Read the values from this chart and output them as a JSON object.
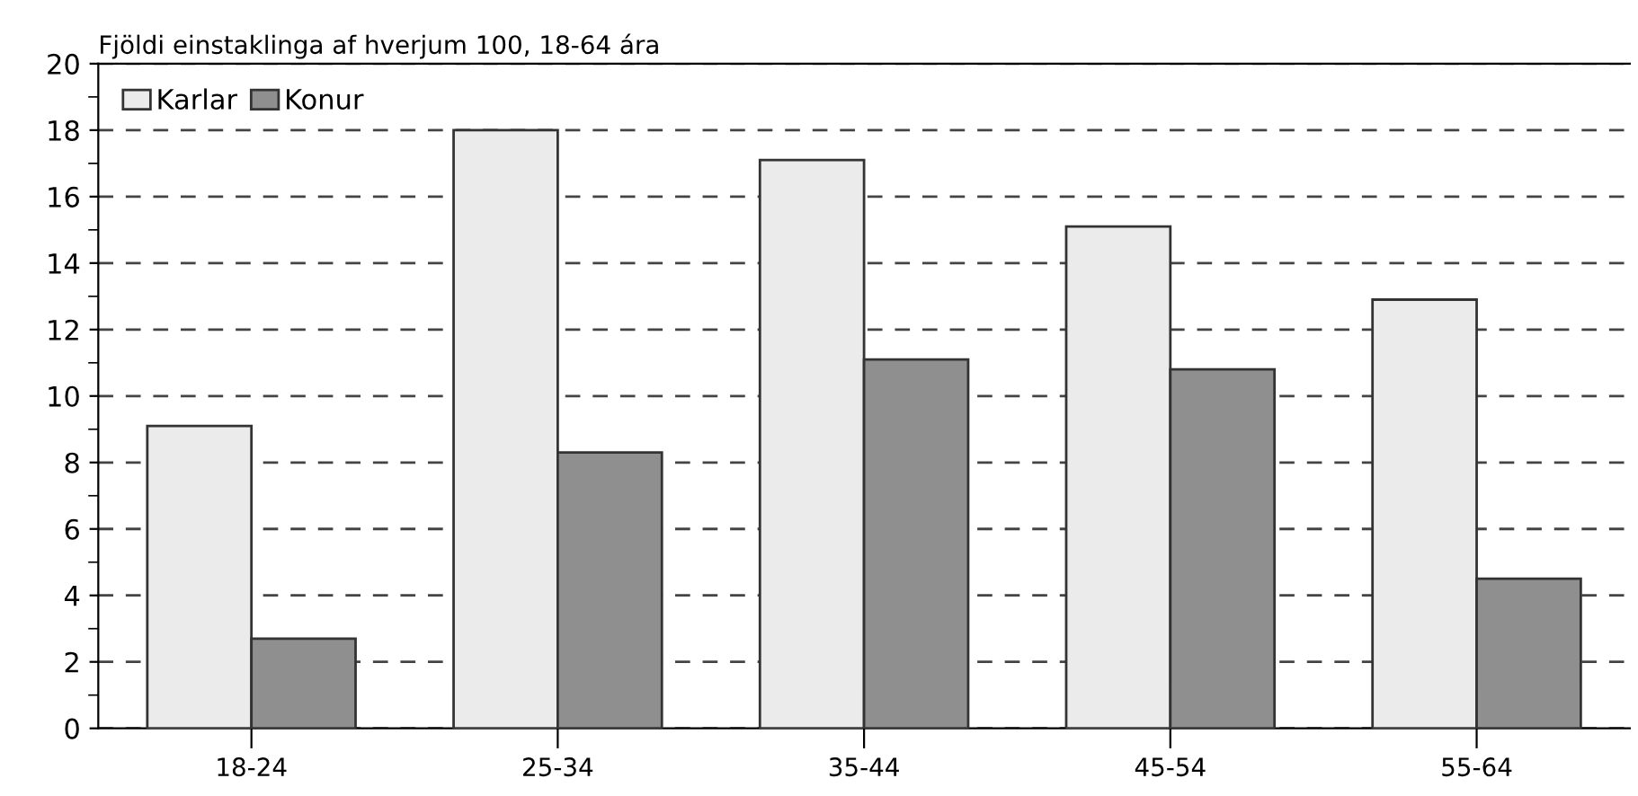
{
  "chart_data": {
    "type": "bar",
    "title": "Fjöldi einstaklinga af hverjum 100, 18-64 ára",
    "categories": [
      "18-24",
      "25-34",
      "35-44",
      "45-54",
      "55-64"
    ],
    "series": [
      {
        "name": "Karlar",
        "color": "#ebebeb",
        "values": [
          9.1,
          18.0,
          17.1,
          15.1,
          12.9
        ]
      },
      {
        "name": "Konur",
        "color": "#8f8f8f",
        "values": [
          2.7,
          8.3,
          11.1,
          10.8,
          4.5
        ]
      }
    ],
    "ylim": [
      0,
      20
    ],
    "yticks": [
      0,
      2,
      4,
      6,
      8,
      10,
      12,
      14,
      16,
      18,
      20
    ],
    "grid": "y",
    "legend": "top left"
  }
}
